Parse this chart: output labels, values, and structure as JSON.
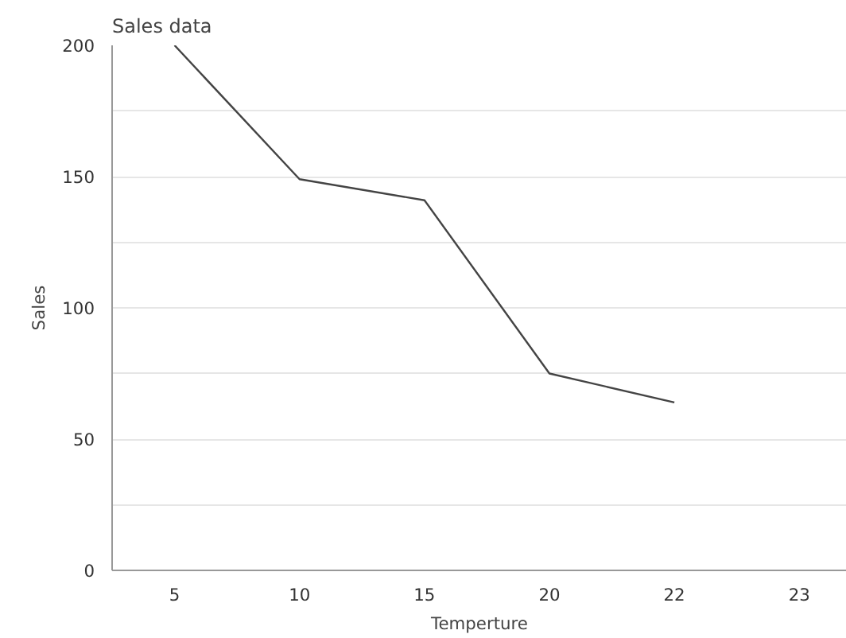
{
  "chart_data": {
    "type": "line",
    "title": "Sales data",
    "xlabel": "Temperture",
    "ylabel": "Sales",
    "categories": [
      "5",
      "10",
      "15",
      "20",
      "22",
      "23"
    ],
    "series": [
      {
        "color": "#444444",
        "values": [
          200,
          149,
          141,
          75,
          64,
          null
        ]
      }
    ],
    "ylim": [
      0,
      200
    ],
    "yticks": [
      0,
      {
        "value": 25,
        "label": null
      },
      50,
      {
        "value": 75,
        "label": null
      },
      100,
      {
        "value": 125,
        "label": null
      },
      150,
      {
        "value": 175,
        "label": null
      },
      200
    ],
    "grid": "y",
    "marker": "none",
    "line_style": "solid"
  }
}
